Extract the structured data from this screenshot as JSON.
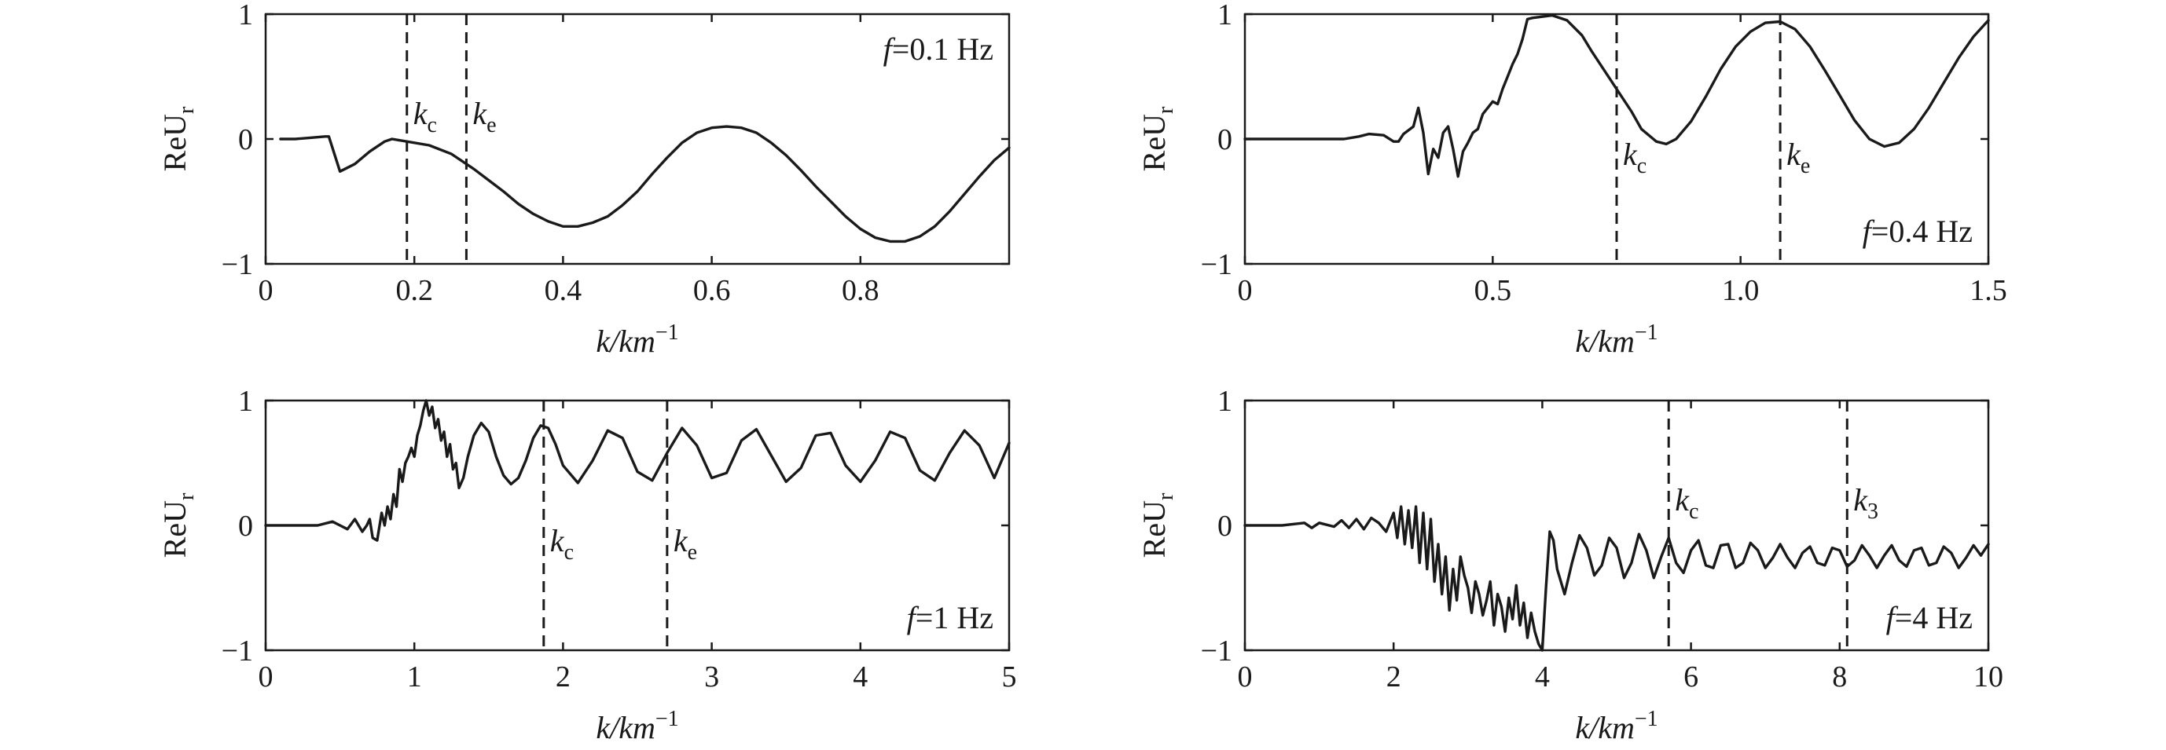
{
  "figure": {
    "colors": {
      "ink": "#1a1a1a",
      "background": "#ffffff"
    }
  },
  "chart_data": [
    {
      "type": "line",
      "panel": "top-left",
      "title": "",
      "xlabel": "k/km",
      "xlabel_superscript": "−1",
      "ylabel": "ReU",
      "ylabel_subscript": "r",
      "xlim": [
        0,
        1.0
      ],
      "ylim": [
        -1,
        1
      ],
      "xticks": [
        0,
        0.2,
        0.4,
        0.6,
        0.8
      ],
      "xtick_labels": [
        "0",
        "0.2",
        "0.4",
        "0.6",
        "0.8"
      ],
      "yticks": [
        -1,
        0,
        1
      ],
      "ytick_labels": [
        "−1",
        "0",
        "1"
      ],
      "grid": false,
      "annotation": "f=0.1 Hz",
      "annotation_parts": {
        "var": "f",
        "rest": "=0.1 Hz"
      },
      "annotation_position": "top-right",
      "vertical_lines": [
        {
          "x": 0.19,
          "label": "k",
          "subscript": "c",
          "label_position": "top"
        },
        {
          "x": 0.27,
          "label": "k",
          "subscript": "e",
          "label_position": "top"
        }
      ],
      "series": [
        {
          "x": [
            0.02,
            0.04,
            0.06,
            0.08,
            0.085,
            0.1,
            0.12,
            0.14,
            0.16,
            0.17,
            0.19,
            0.22,
            0.25,
            0.28,
            0.3,
            0.32,
            0.34,
            0.36,
            0.38,
            0.4,
            0.42,
            0.44,
            0.46,
            0.48,
            0.5,
            0.52,
            0.54,
            0.56,
            0.58,
            0.6,
            0.62,
            0.64,
            0.66,
            0.68,
            0.7,
            0.72,
            0.74,
            0.76,
            0.78,
            0.8,
            0.82,
            0.84,
            0.86,
            0.88,
            0.9,
            0.92,
            0.94,
            0.96,
            0.98,
            1.0
          ],
          "values": [
            0.0,
            0.0,
            0.01,
            0.02,
            0.02,
            -0.26,
            -0.2,
            -0.1,
            -0.02,
            0.0,
            -0.02,
            -0.05,
            -0.12,
            -0.24,
            -0.33,
            -0.42,
            -0.52,
            -0.6,
            -0.66,
            -0.7,
            -0.7,
            -0.67,
            -0.62,
            -0.53,
            -0.42,
            -0.28,
            -0.15,
            -0.03,
            0.05,
            0.09,
            0.1,
            0.09,
            0.05,
            -0.03,
            -0.13,
            -0.25,
            -0.38,
            -0.5,
            -0.62,
            -0.72,
            -0.79,
            -0.82,
            -0.82,
            -0.78,
            -0.7,
            -0.58,
            -0.44,
            -0.3,
            -0.17,
            -0.07
          ]
        }
      ]
    },
    {
      "type": "line",
      "panel": "top-right",
      "title": "",
      "xlabel": "k/km",
      "xlabel_superscript": "−1",
      "ylabel": "ReU",
      "ylabel_subscript": "r",
      "xlim": [
        0,
        1.5
      ],
      "ylim": [
        -1,
        1
      ],
      "xticks": [
        0,
        0.5,
        1.0,
        1.5
      ],
      "xtick_labels": [
        "0",
        "0.5",
        "1.0",
        "1.5"
      ],
      "yticks": [
        -1,
        0,
        1
      ],
      "ytick_labels": [
        "−1",
        "0",
        "1"
      ],
      "grid": false,
      "annotation": "f=0.4 Hz",
      "annotation_parts": {
        "var": "f",
        "rest": "=0.4 Hz"
      },
      "annotation_position": "bottom-right",
      "vertical_lines": [
        {
          "x": 0.75,
          "label": "k",
          "subscript": "c",
          "label_position": "middle"
        },
        {
          "x": 1.08,
          "label": "k",
          "subscript": "e",
          "label_position": "middle"
        }
      ],
      "series": [
        {
          "x": [
            0.0,
            0.05,
            0.1,
            0.15,
            0.18,
            0.2,
            0.23,
            0.25,
            0.28,
            0.3,
            0.31,
            0.32,
            0.34,
            0.35,
            0.36,
            0.37,
            0.38,
            0.39,
            0.4,
            0.41,
            0.42,
            0.43,
            0.44,
            0.45,
            0.46,
            0.47,
            0.48,
            0.49,
            0.5,
            0.51,
            0.52,
            0.53,
            0.54,
            0.55,
            0.56,
            0.57,
            0.58,
            0.6,
            0.62,
            0.65,
            0.68,
            0.7,
            0.73,
            0.75,
            0.78,
            0.8,
            0.83,
            0.85,
            0.87,
            0.9,
            0.93,
            0.96,
            0.99,
            1.02,
            1.05,
            1.08,
            1.11,
            1.14,
            1.17,
            1.2,
            1.23,
            1.26,
            1.29,
            1.32,
            1.35,
            1.38,
            1.41,
            1.44,
            1.47,
            1.5
          ],
          "values": [
            0.0,
            0.0,
            0.0,
            0.0,
            0.0,
            0.0,
            0.02,
            0.04,
            0.03,
            -0.02,
            -0.02,
            0.04,
            0.1,
            0.25,
            0.05,
            -0.28,
            -0.08,
            -0.15,
            0.05,
            0.1,
            -0.08,
            -0.3,
            -0.1,
            -0.03,
            0.05,
            0.08,
            0.2,
            0.25,
            0.3,
            0.28,
            0.4,
            0.5,
            0.6,
            0.68,
            0.8,
            0.96,
            0.97,
            0.98,
            0.99,
            0.95,
            0.83,
            0.7,
            0.52,
            0.4,
            0.22,
            0.08,
            -0.02,
            -0.04,
            0.0,
            0.14,
            0.34,
            0.56,
            0.74,
            0.86,
            0.93,
            0.94,
            0.88,
            0.74,
            0.55,
            0.35,
            0.15,
            0.0,
            -0.06,
            -0.03,
            0.08,
            0.25,
            0.45,
            0.65,
            0.82,
            0.95
          ]
        }
      ]
    },
    {
      "type": "line",
      "panel": "bottom-left",
      "title": "",
      "xlabel": "k/km",
      "xlabel_superscript": "−1",
      "ylabel": "ReU",
      "ylabel_subscript": "r",
      "xlim": [
        0,
        5
      ],
      "ylim": [
        -1,
        1
      ],
      "xticks": [
        0,
        1,
        2,
        3,
        4,
        5
      ],
      "xtick_labels": [
        "0",
        "1",
        "2",
        "3",
        "4",
        "5"
      ],
      "yticks": [
        -1,
        0,
        1
      ],
      "ytick_labels": [
        "−1",
        "0",
        "1"
      ],
      "grid": false,
      "annotation": "f=1 Hz",
      "annotation_parts": {
        "var": "f",
        "rest": "=1 Hz"
      },
      "annotation_position": "bottom-right",
      "vertical_lines": [
        {
          "x": 1.87,
          "label": "k",
          "subscript": "c",
          "label_position": "middle"
        },
        {
          "x": 2.7,
          "label": "k",
          "subscript": "e",
          "label_position": "middle"
        }
      ],
      "series": [
        {
          "x": [
            0.0,
            0.2,
            0.35,
            0.45,
            0.5,
            0.55,
            0.6,
            0.65,
            0.68,
            0.7,
            0.72,
            0.75,
            0.78,
            0.8,
            0.82,
            0.84,
            0.86,
            0.88,
            0.9,
            0.92,
            0.94,
            0.96,
            0.98,
            1.0,
            1.02,
            1.04,
            1.06,
            1.08,
            1.1,
            1.12,
            1.14,
            1.16,
            1.18,
            1.2,
            1.22,
            1.24,
            1.26,
            1.28,
            1.3,
            1.33,
            1.36,
            1.4,
            1.45,
            1.5,
            1.55,
            1.6,
            1.65,
            1.7,
            1.75,
            1.8,
            1.85,
            1.9,
            1.95,
            2.0,
            2.1,
            2.2,
            2.3,
            2.4,
            2.5,
            2.6,
            2.7,
            2.8,
            2.9,
            3.0,
            3.1,
            3.2,
            3.3,
            3.4,
            3.5,
            3.6,
            3.7,
            3.8,
            3.9,
            4.0,
            4.1,
            4.2,
            4.3,
            4.4,
            4.5,
            4.6,
            4.7,
            4.8,
            4.9,
            5.0
          ],
          "values": [
            0.0,
            0.0,
            0.0,
            0.03,
            0.0,
            -0.03,
            0.05,
            -0.05,
            0.0,
            0.05,
            -0.1,
            -0.12,
            0.1,
            0.0,
            0.15,
            0.05,
            0.25,
            0.15,
            0.45,
            0.35,
            0.5,
            0.55,
            0.62,
            0.55,
            0.72,
            0.8,
            0.92,
            1.0,
            0.88,
            0.95,
            0.78,
            0.85,
            0.68,
            0.75,
            0.55,
            0.65,
            0.45,
            0.5,
            0.3,
            0.38,
            0.55,
            0.72,
            0.82,
            0.75,
            0.55,
            0.4,
            0.33,
            0.38,
            0.52,
            0.7,
            0.8,
            0.78,
            0.65,
            0.48,
            0.34,
            0.52,
            0.76,
            0.7,
            0.43,
            0.36,
            0.58,
            0.78,
            0.64,
            0.38,
            0.42,
            0.68,
            0.77,
            0.56,
            0.35,
            0.46,
            0.72,
            0.74,
            0.48,
            0.35,
            0.52,
            0.75,
            0.7,
            0.44,
            0.36,
            0.58,
            0.76,
            0.64,
            0.38,
            0.66
          ]
        }
      ]
    },
    {
      "type": "line",
      "panel": "bottom-right",
      "title": "",
      "xlabel": "k/km",
      "xlabel_superscript": "−1",
      "ylabel": "ReU",
      "ylabel_subscript": "r",
      "xlim": [
        0,
        10
      ],
      "ylim": [
        -1,
        1
      ],
      "xticks": [
        0,
        2,
        4,
        6,
        8,
        10
      ],
      "xtick_labels": [
        "0",
        "2",
        "4",
        "6",
        "8",
        "10"
      ],
      "yticks": [
        -1,
        0,
        1
      ],
      "ytick_labels": [
        "−1",
        "0",
        "1"
      ],
      "grid": false,
      "annotation": "f=4 Hz",
      "annotation_parts": {
        "var": "f",
        "rest": "=4 Hz"
      },
      "annotation_position": "bottom-right",
      "vertical_lines": [
        {
          "x": 5.7,
          "label": "k",
          "subscript": "c",
          "label_position": "top"
        },
        {
          "x": 8.1,
          "label": "k",
          "subscript": "3",
          "label_position": "top"
        }
      ],
      "series": [
        {
          "x": [
            0.0,
            0.5,
            0.8,
            0.9,
            1.0,
            1.2,
            1.3,
            1.4,
            1.5,
            1.6,
            1.7,
            1.8,
            1.9,
            2.0,
            2.05,
            2.1,
            2.15,
            2.2,
            2.25,
            2.3,
            2.35,
            2.4,
            2.45,
            2.5,
            2.55,
            2.6,
            2.65,
            2.7,
            2.75,
            2.8,
            2.85,
            2.9,
            2.95,
            3.0,
            3.05,
            3.1,
            3.15,
            3.2,
            3.25,
            3.3,
            3.35,
            3.4,
            3.45,
            3.5,
            3.55,
            3.6,
            3.65,
            3.7,
            3.75,
            3.8,
            3.85,
            3.9,
            3.95,
            4.0,
            4.05,
            4.1,
            4.15,
            4.2,
            4.3,
            4.4,
            4.5,
            4.6,
            4.7,
            4.8,
            4.9,
            5.0,
            5.1,
            5.2,
            5.3,
            5.4,
            5.5,
            5.6,
            5.7,
            5.8,
            5.9,
            6.0,
            6.1,
            6.2,
            6.3,
            6.4,
            6.5,
            6.6,
            6.7,
            6.8,
            6.9,
            7.0,
            7.1,
            7.2,
            7.3,
            7.4,
            7.5,
            7.6,
            7.7,
            7.8,
            7.9,
            8.0,
            8.1,
            8.2,
            8.3,
            8.4,
            8.5,
            8.6,
            8.7,
            8.8,
            8.9,
            9.0,
            9.1,
            9.2,
            9.3,
            9.4,
            9.5,
            9.6,
            9.7,
            9.8,
            9.9,
            10.0
          ],
          "values": [
            0.0,
            0.0,
            0.02,
            -0.02,
            0.02,
            -0.01,
            0.04,
            -0.02,
            0.05,
            -0.03,
            0.06,
            0.02,
            -0.05,
            0.1,
            -0.1,
            0.15,
            -0.15,
            0.12,
            -0.18,
            0.15,
            -0.3,
            0.1,
            -0.35,
            0.05,
            -0.45,
            -0.15,
            -0.55,
            -0.25,
            -0.68,
            -0.35,
            -0.6,
            -0.25,
            -0.4,
            -0.5,
            -0.7,
            -0.45,
            -0.55,
            -0.72,
            -0.6,
            -0.45,
            -0.8,
            -0.55,
            -0.65,
            -0.85,
            -0.58,
            -0.75,
            -0.48,
            -0.8,
            -0.62,
            -0.9,
            -0.7,
            -0.85,
            -0.95,
            -1.0,
            -0.5,
            -0.05,
            -0.12,
            -0.35,
            -0.55,
            -0.3,
            -0.08,
            -0.18,
            -0.4,
            -0.32,
            -0.1,
            -0.18,
            -0.42,
            -0.3,
            -0.07,
            -0.2,
            -0.42,
            -0.25,
            -0.1,
            -0.3,
            -0.38,
            -0.2,
            -0.12,
            -0.32,
            -0.34,
            -0.16,
            -0.15,
            -0.34,
            -0.3,
            -0.14,
            -0.2,
            -0.34,
            -0.26,
            -0.15,
            -0.26,
            -0.34,
            -0.22,
            -0.17,
            -0.3,
            -0.32,
            -0.18,
            -0.2,
            -0.33,
            -0.28,
            -0.16,
            -0.24,
            -0.34,
            -0.24,
            -0.16,
            -0.28,
            -0.33,
            -0.2,
            -0.18,
            -0.32,
            -0.3,
            -0.17,
            -0.22,
            -0.34,
            -0.26,
            -0.16,
            -0.24,
            -0.15
          ]
        }
      ]
    }
  ]
}
